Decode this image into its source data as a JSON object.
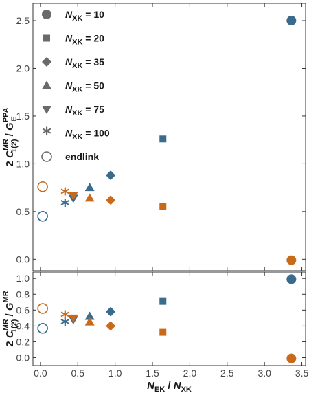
{
  "colors": {
    "blue": "#3a6b8c",
    "orange": "#c96a1b",
    "legend": "#6a6a6a",
    "frame": "#333333"
  },
  "chart_data": [
    {
      "type": "scatter",
      "panel": "top",
      "ylabel_parts": [
        "2 ",
        "C",
        "MR",
        "1(2)",
        " / ",
        "G",
        "PPA",
        "E"
      ],
      "xlim": [
        -0.1,
        3.55
      ],
      "ylim": [
        -0.12,
        2.68
      ],
      "yticks": [
        "0.0",
        "0.5",
        "1.0",
        "1.5",
        "2.0",
        "2.5"
      ],
      "grid": false,
      "legend_position": "top-left",
      "legend": [
        {
          "marker": "circle",
          "name": [
            "N",
            "XK",
            " = 10"
          ]
        },
        {
          "marker": "square",
          "name": [
            "N",
            "XK",
            " = 20"
          ]
        },
        {
          "marker": "diamond",
          "name": [
            "N",
            "XK",
            " = 35"
          ]
        },
        {
          "marker": "triangle-up",
          "name": [
            "N",
            "XK",
            " = 50"
          ]
        },
        {
          "marker": "triangle-down",
          "name": [
            "N",
            "XK",
            " = 75"
          ]
        },
        {
          "marker": "asterisk",
          "name": [
            "N",
            "XK",
            " = 100"
          ]
        },
        {
          "marker": "open-circle",
          "name": [
            "",
            "",
            "endlink"
          ]
        }
      ],
      "series": [
        {
          "color": "blue",
          "points": [
            {
              "marker": "circle",
              "x": 3.36,
              "y": 2.5
            },
            {
              "marker": "square",
              "x": 1.64,
              "y": 1.26
            },
            {
              "marker": "diamond",
              "x": 0.94,
              "y": 0.88
            },
            {
              "marker": "triangle-up",
              "x": 0.66,
              "y": 0.75
            },
            {
              "marker": "triangle-down",
              "x": 0.44,
              "y": 0.64
            },
            {
              "marker": "asterisk",
              "x": 0.33,
              "y": 0.57
            },
            {
              "marker": "open-circle",
              "x": 0.03,
              "y": 0.45
            }
          ]
        },
        {
          "color": "orange",
          "points": [
            {
              "marker": "circle",
              "x": 3.36,
              "y": -0.01
            },
            {
              "marker": "square",
              "x": 1.64,
              "y": 0.55
            },
            {
              "marker": "diamond",
              "x": 0.94,
              "y": 0.62
            },
            {
              "marker": "triangle-up",
              "x": 0.66,
              "y": 0.64
            },
            {
              "marker": "triangle-down",
              "x": 0.44,
              "y": 0.67
            },
            {
              "marker": "asterisk",
              "x": 0.33,
              "y": 0.69
            },
            {
              "marker": "open-circle",
              "x": 0.03,
              "y": 0.76
            }
          ]
        }
      ]
    },
    {
      "type": "scatter",
      "panel": "bottom",
      "ylabel_parts": [
        "2 ",
        "C",
        "MR",
        "1(2)",
        " / ",
        "G",
        "MR",
        ""
      ],
      "xlabel_parts": [
        "N",
        "EK",
        " / ",
        "N",
        "XK"
      ],
      "xlim": [
        -0.1,
        3.55
      ],
      "ylim": [
        -0.1,
        1.08
      ],
      "yticks": [
        "0.0",
        "0.2",
        "0.4",
        "0.6",
        "0.8",
        "1.0"
      ],
      "xticks": [
        "0.0",
        "0.5",
        "1.0",
        "1.5",
        "2.0",
        "2.5",
        "3.0",
        "3.5"
      ],
      "grid": false,
      "series": [
        {
          "color": "blue",
          "points": [
            {
              "marker": "circle",
              "x": 3.36,
              "y": 0.99
            },
            {
              "marker": "square",
              "x": 1.64,
              "y": 0.71
            },
            {
              "marker": "diamond",
              "x": 0.94,
              "y": 0.58
            },
            {
              "marker": "triangle-up",
              "x": 0.66,
              "y": 0.52
            },
            {
              "marker": "triangle-down",
              "x": 0.44,
              "y": 0.48
            },
            {
              "marker": "asterisk",
              "x": 0.33,
              "y": 0.43
            },
            {
              "marker": "open-circle",
              "x": 0.03,
              "y": 0.37
            }
          ]
        },
        {
          "color": "orange",
          "points": [
            {
              "marker": "circle",
              "x": 3.36,
              "y": -0.01
            },
            {
              "marker": "square",
              "x": 1.64,
              "y": 0.32
            },
            {
              "marker": "diamond",
              "x": 0.94,
              "y": 0.4
            },
            {
              "marker": "triangle-up",
              "x": 0.66,
              "y": 0.45
            },
            {
              "marker": "triangle-down",
              "x": 0.44,
              "y": 0.5
            },
            {
              "marker": "asterisk",
              "x": 0.33,
              "y": 0.52
            },
            {
              "marker": "open-circle",
              "x": 0.03,
              "y": 0.62
            }
          ]
        }
      ]
    }
  ]
}
